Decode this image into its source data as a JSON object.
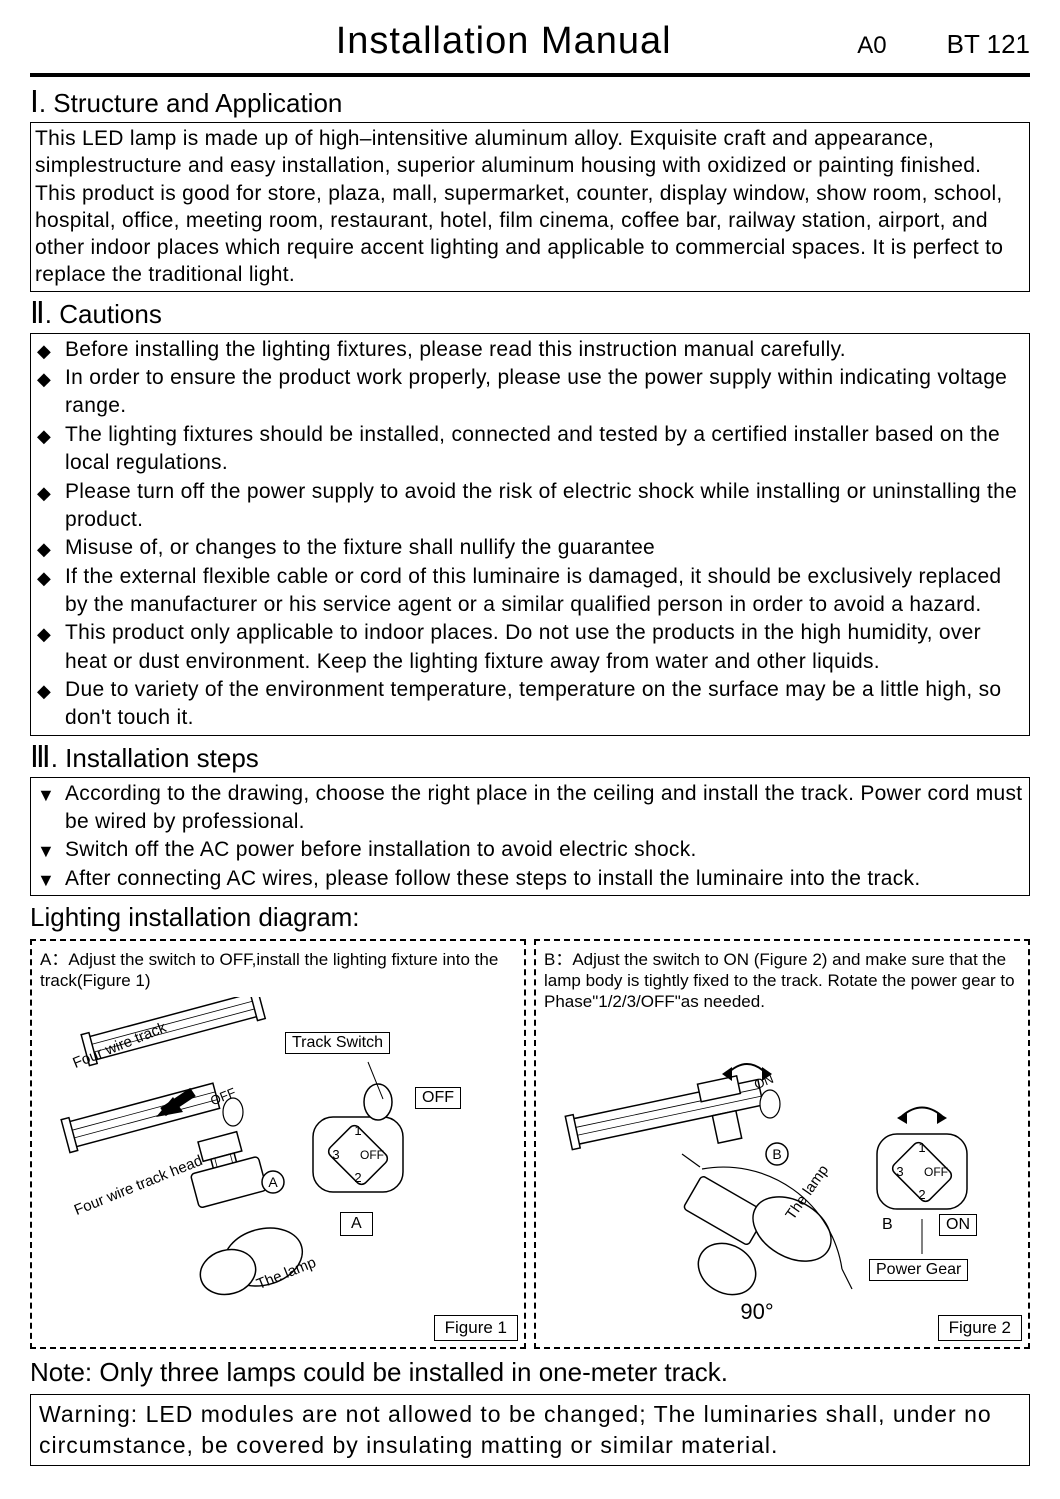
{
  "header": {
    "title": "Installation Manual",
    "revision": "A0",
    "model": "BT 121"
  },
  "section1": {
    "heading_roman": "Ⅰ",
    "heading_text": ". Structure and Application",
    "body": "This LED lamp is made up of high–intensitive aluminum alloy. Exquisite craft and appearance, simplestructure and easy installation, superior aluminum housing with oxidized or painting finished. This product is good for store, plaza, mall, supermarket, counter, display window, show room, school, hospital, office, meeting room, restaurant, hotel, film cinema, coffee bar, railway station, airport, and other indoor places which require accent lighting and applicable to commercial spaces. It is perfect to replace the traditional light."
  },
  "section2": {
    "heading_roman": "Ⅱ",
    "heading_text": ". Cautions",
    "items": [
      "Before installing the lighting fixtures, please read this instruction manual carefully.",
      "In order to ensure the product work properly, please use the power supply within indicating voltage range.",
      "The lighting fixtures should be installed, connected and tested by a certified installer based on  the local regulations.",
      "Please turn off the power supply to avoid the risk of electric shock while installing or uninstalling  the product.",
      "Misuse of, or changes to the fixture shall nullify the guarantee",
      "If the external flexible cable or cord of this luminaire is damaged, it should be exclusively replaced by the manufacturer or his service agent or a similar qualified person in order to avoid a  hazard.",
      "This product only applicable to indoor places. Do not use the products in the high humidity, over  heat or dust environment. Keep the lighting fixture away from water and other liquids.",
      "Due to variety of the environment temperature, temperature on the surface may be a little high,  so don't touch it."
    ],
    "marker": "◆"
  },
  "section3": {
    "heading_roman": "Ⅲ",
    "heading_text": ". Installation steps",
    "items": [
      "According to the drawing, choose the right place in the ceiling and install the track. Power cord must be wired by professional.",
      "Switch off the AC power before installation to avoid electric shock.",
      "After connecting AC wires, please follow these steps to install the luminaire into the track."
    ],
    "marker": "▼"
  },
  "diagram": {
    "title": "Lighting installation diagram:",
    "panelA": {
      "text": "A：Adjust the switch to OFF,install the lighting fixture into the track(Figure 1)",
      "figure_label": "Figure 1",
      "labels": {
        "track_switch": "Track Switch",
        "off": "OFF",
        "four_wire_track": "Four wire track",
        "four_wire_track_head": "Four wire track head",
        "the_lamp": "The lamp",
        "letter_a": "A",
        "gear_1": "1",
        "gear_2": "2",
        "gear_3": "3",
        "gear_off": "OFF"
      }
    },
    "panelB": {
      "text": "B：Adjust the switch to ON (Figure 2) and make sure that the lamp body is tightly fixed to the track. Rotate the power gear to Phase\"1/2/3/OFF\"as needed.",
      "figure_label": "Figure 2",
      "labels": {
        "on": "ON",
        "the_lamp": "The lamp",
        "letter_b": "B",
        "power_gear": "Power Gear",
        "angle": "90°",
        "gear_1": "1",
        "gear_2": "2",
        "gear_3": "3",
        "gear_off": "OFF"
      }
    }
  },
  "note": "Note: Only three lamps could be installed in one-meter track.",
  "warning": "Warning: LED modules are not allowed to be changed; The luminaries shall, under no circumstance, be covered by insulating matting or similar material.",
  "colors": {
    "text": "#000000",
    "background": "#ffffff",
    "border": "#000000"
  }
}
